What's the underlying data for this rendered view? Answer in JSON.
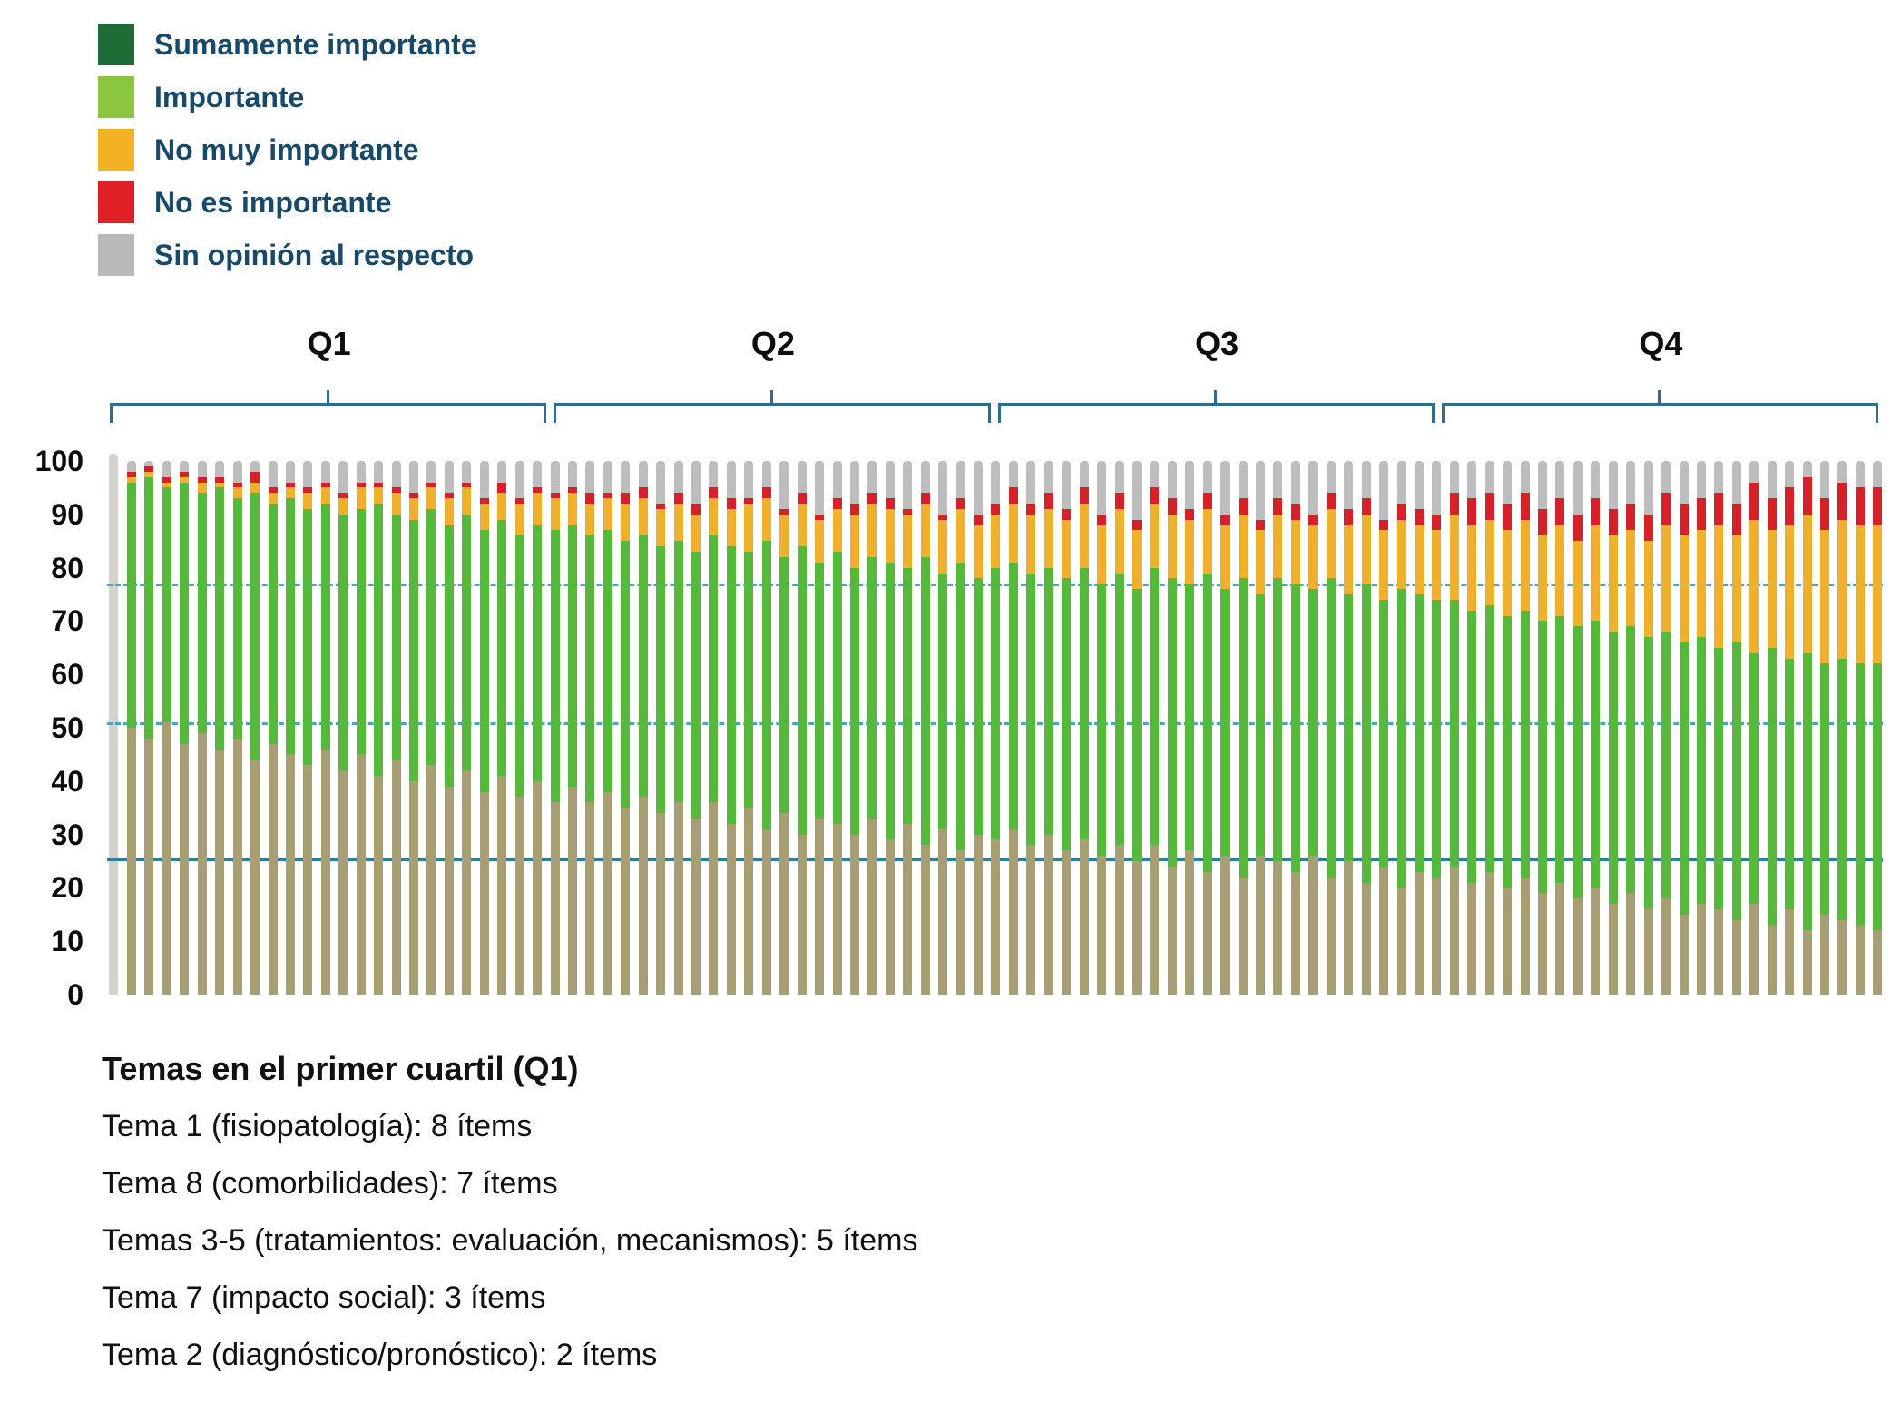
{
  "legend": {
    "items": [
      {
        "label": "Sumamente importante",
        "color": "#1e6b35"
      },
      {
        "label": "Importante",
        "color": "#8cc63f"
      },
      {
        "label": "No muy importante",
        "color": "#f2b224"
      },
      {
        "label": "No es importante",
        "color": "#df2027"
      },
      {
        "label": "Sin opinión al respecto",
        "color": "#b9b9b9"
      }
    ]
  },
  "quartiles": [
    "Q1",
    "Q2",
    "Q3",
    "Q4"
  ],
  "footnotes": {
    "heading": "Temas en el primer cuartil (Q1)",
    "lines": [
      "Tema 1 (fisiopatología): 8 ítems",
      "Tema 8 (comorbilidades): 7 ítems",
      "Temas 3-5 (tratamientos: evaluación, mecanismos): 5 ítems",
      "Tema 7 (impacto social): 3 ítems",
      "Tema 2 (diagnóstico/pronóstico): 2 ítems"
    ]
  },
  "chart_data": {
    "type": "bar",
    "subtype": "stacked_percentage_per_item",
    "description": "About 100 survey items (one thin stacked bar each), ordered into quartiles Q1-Q4 by importance; each bar stacks to 100%.",
    "n_bars": 100,
    "total": 100,
    "ylim": [
      0,
      100
    ],
    "y_ticks": [
      100,
      90,
      80,
      70,
      60,
      50,
      40,
      30,
      20,
      10,
      0
    ],
    "grid": "off",
    "legend_position": "top-left",
    "reference_lines": [
      {
        "value": 76.5,
        "style": "dashed",
        "color": "#4aa4c8"
      },
      {
        "value": 50.5,
        "style": "dashed",
        "color": "#4aa4c8"
      },
      {
        "value": 25,
        "style": "solid",
        "color": "#2b80a4"
      }
    ],
    "bar_render_colors": {
      "sumamente": "#a79f73",
      "importante": "#57b93c",
      "no_muy": "#eeb02d",
      "no_es": "#d62128",
      "sin_opinion": "#bdbdbd"
    },
    "series": [
      {
        "name": "Sumamente importante",
        "stack_top": [
          50,
          48,
          51,
          47,
          49,
          46,
          48,
          44,
          47,
          45,
          43,
          46,
          42,
          45,
          41,
          44,
          40,
          43,
          39,
          42,
          38,
          41,
          37,
          40,
          36,
          39,
          36,
          38,
          35,
          37,
          34,
          36,
          33,
          36,
          32,
          35,
          31,
          34,
          30,
          33,
          32,
          30,
          33,
          29,
          32,
          28,
          31,
          27,
          30,
          29,
          31,
          28,
          30,
          27,
          29,
          26,
          28,
          25,
          28,
          24,
          27,
          23,
          26,
          22,
          26,
          25,
          23,
          26,
          22,
          25,
          21,
          24,
          20,
          23,
          22,
          24,
          21,
          23,
          20,
          22,
          19,
          21,
          18,
          20,
          17,
          19,
          16,
          18,
          15,
          17,
          16,
          14,
          17,
          13,
          16,
          12,
          15,
          14,
          13,
          12
        ]
      },
      {
        "name": "Importante",
        "stack_top": [
          96,
          97,
          95,
          96,
          94,
          95,
          93,
          94,
          92,
          93,
          91,
          92,
          90,
          91,
          92,
          90,
          89,
          91,
          88,
          90,
          87,
          89,
          86,
          88,
          87,
          88,
          86,
          87,
          85,
          86,
          84,
          85,
          83,
          86,
          84,
          83,
          85,
          82,
          84,
          81,
          83,
          80,
          82,
          81,
          80,
          82,
          79,
          81,
          78,
          80,
          81,
          79,
          80,
          78,
          80,
          77,
          79,
          76,
          80,
          78,
          77,
          79,
          76,
          78,
          75,
          78,
          77,
          76,
          78,
          75,
          77,
          74,
          76,
          75,
          74,
          74,
          72,
          73,
          71,
          72,
          70,
          71,
          69,
          70,
          68,
          69,
          67,
          68,
          66,
          67,
          65,
          66,
          64,
          65,
          63,
          64,
          62,
          63,
          62,
          62
        ]
      },
      {
        "name": "No muy importante",
        "stack_top": [
          97,
          98,
          96,
          97,
          96,
          96,
          95,
          96,
          94,
          95,
          94,
          95,
          93,
          95,
          95,
          94,
          93,
          95,
          93,
          95,
          92,
          94,
          92,
          94,
          93,
          94,
          92,
          93,
          92,
          93,
          91,
          92,
          90,
          93,
          91,
          92,
          93,
          90,
          92,
          89,
          91,
          90,
          92,
          91,
          90,
          92,
          89,
          91,
          88,
          90,
          92,
          90,
          91,
          89,
          92,
          88,
          91,
          87,
          92,
          90,
          89,
          91,
          88,
          90,
          87,
          90,
          89,
          88,
          91,
          88,
          90,
          87,
          89,
          88,
          87,
          90,
          88,
          89,
          87,
          89,
          86,
          88,
          85,
          88,
          86,
          87,
          85,
          88,
          86,
          87,
          88,
          86,
          89,
          87,
          88,
          90,
          87,
          89,
          88,
          88
        ]
      },
      {
        "name": "No es importante",
        "stack_top": [
          98,
          99,
          97,
          98,
          97,
          97,
          96,
          98,
          95,
          96,
          95,
          96,
          94,
          96,
          96,
          95,
          94,
          96,
          94,
          96,
          93,
          96,
          93,
          95,
          94,
          95,
          94,
          94,
          94,
          95,
          92,
          94,
          92,
          95,
          93,
          93,
          95,
          91,
          94,
          90,
          93,
          92,
          94,
          93,
          91,
          94,
          90,
          93,
          90,
          92,
          95,
          92,
          94,
          91,
          95,
          90,
          94,
          89,
          95,
          93,
          91,
          94,
          90,
          93,
          89,
          93,
          92,
          90,
          94,
          91,
          93,
          89,
          92,
          91,
          90,
          94,
          93,
          94,
          92,
          94,
          91,
          93,
          90,
          93,
          91,
          92,
          90,
          94,
          92,
          93,
          94,
          92,
          96,
          93,
          95,
          97,
          93,
          96,
          95,
          95
        ]
      },
      {
        "name": "Sin opinión al respecto",
        "stack_top_constant": 100
      }
    ]
  }
}
